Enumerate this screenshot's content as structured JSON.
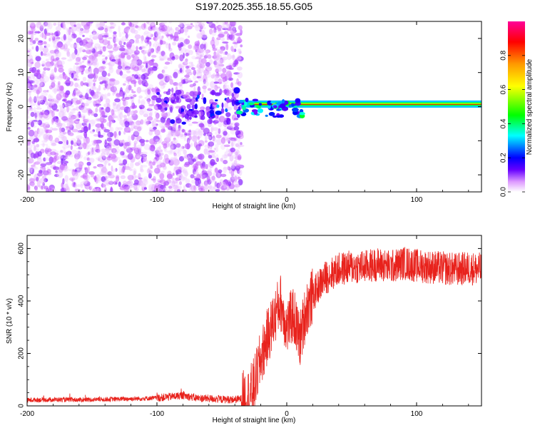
{
  "title": "S197.2025.355.18.55.G05",
  "chart_data": [
    {
      "type": "heatmap",
      "xlabel": "Height of straight line (km)",
      "ylabel": "Frequency (Hz)",
      "xlim": [
        -200,
        150
      ],
      "ylim": [
        -25,
        25
      ],
      "x_ticks": [
        -200,
        -100,
        0,
        100
      ],
      "y_ticks": [
        -20,
        -10,
        0,
        10,
        20
      ],
      "colorbar": {
        "label": "Normalized spectral amplitude",
        "range": [
          0,
          1
        ],
        "ticks": [
          "0.0",
          "0.2",
          "0.4",
          "0.6",
          "0.8"
        ],
        "colormap": [
          "#ffffff",
          "#cc66ff",
          "#6600ff",
          "#0000ff",
          "#00ffff",
          "#00ff00",
          "#ffff00",
          "#ff9900",
          "#ff0000",
          "#ff0099"
        ]
      },
      "features": [
        {
          "region_x_km": [
            -200,
            -35
          ],
          "frequency_hz": [
            -25,
            25
          ],
          "amplitude": "low, scattered noise (0.05-0.3)"
        },
        {
          "region_x_km": [
            -100,
            -35
          ],
          "frequency_hz": [
            -5,
            5
          ],
          "amplitude": "0.2-0.4"
        },
        {
          "region_x_km": [
            -35,
            150
          ],
          "frequency_hz": [
            0,
            2
          ],
          "amplitude": "narrow band, 0.7-1.0"
        }
      ]
    },
    {
      "type": "line",
      "xlabel": "Height of straight line (km)",
      "ylabel": "SNR (10 * v/v)",
      "xlim": [
        -200,
        150
      ],
      "ylim": [
        0,
        650
      ],
      "x_ticks": [
        -200,
        -100,
        0,
        100
      ],
      "y_ticks": [
        0,
        200,
        400,
        600
      ],
      "color": "#e8221c",
      "x": [
        -200,
        -180,
        -160,
        -140,
        -120,
        -100,
        -90,
        -80,
        -70,
        -60,
        -50,
        -40,
        -30,
        -25,
        -20,
        -15,
        -10,
        -5,
        0,
        5,
        10,
        15,
        20,
        25,
        30,
        40,
        50,
        60,
        70,
        80,
        90,
        100,
        110,
        120,
        130,
        140,
        150
      ],
      "y": [
        22,
        24,
        23,
        25,
        27,
        30,
        35,
        40,
        30,
        28,
        25,
        24,
        30,
        80,
        180,
        260,
        330,
        400,
        300,
        350,
        250,
        370,
        420,
        460,
        490,
        520,
        530,
        530,
        540,
        530,
        545,
        535,
        530,
        525,
        520,
        525,
        520
      ]
    }
  ]
}
